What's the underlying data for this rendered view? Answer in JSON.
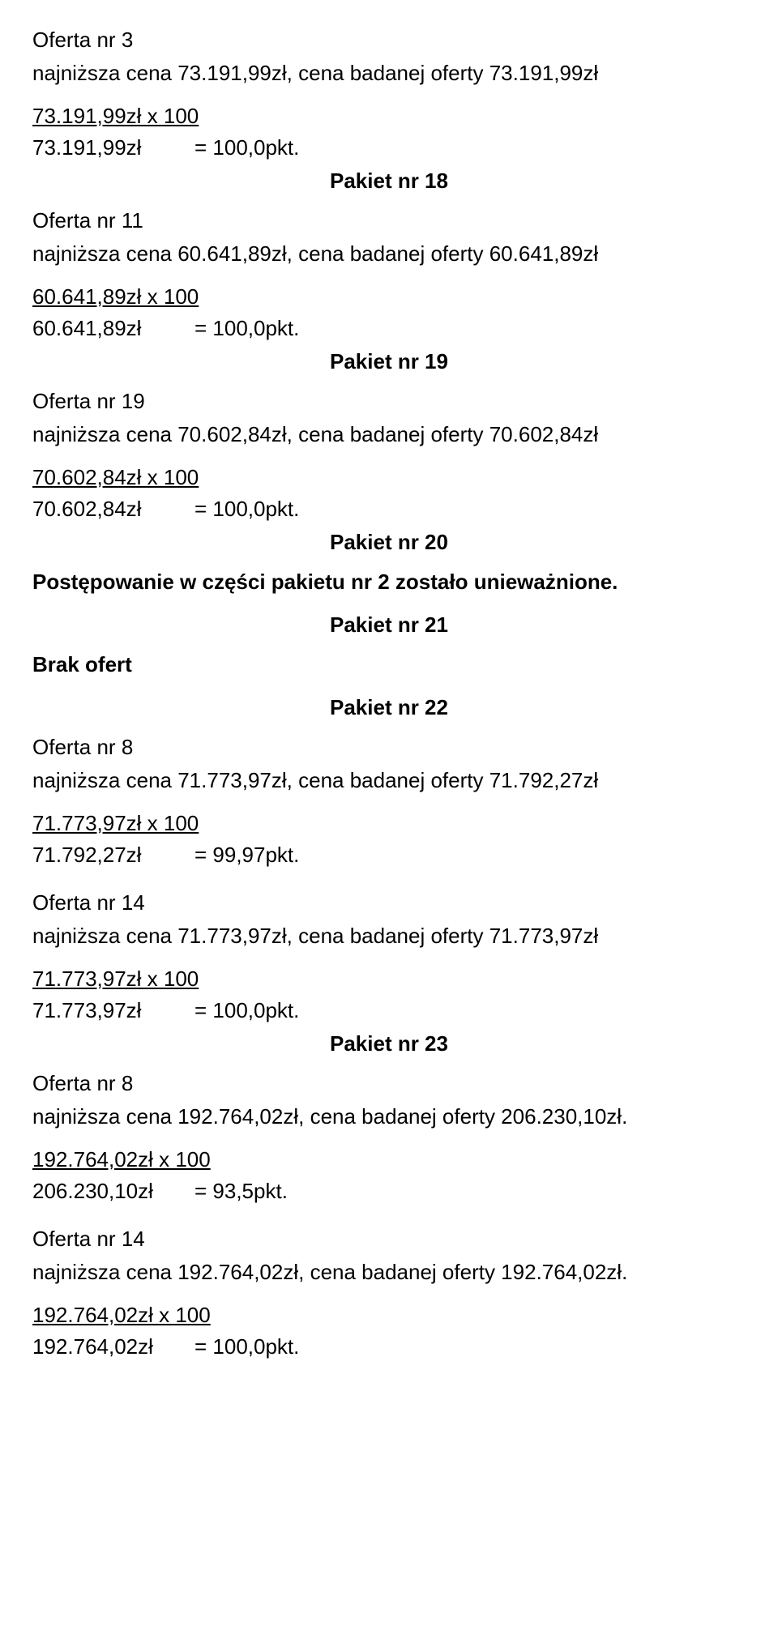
{
  "sec1": {
    "offer": "Oferta nr 3",
    "priceline": "najniższa cena 73.191,99zł, cena badanej oferty 73.191,99zł",
    "frac_top": "73.191,99zł  x  100",
    "frac_bot": "73.191,99zł",
    "points": "=  100,0pkt."
  },
  "pakiet18": "Pakiet nr 18",
  "sec2": {
    "offer": "Oferta nr 11",
    "priceline": "najniższa cena 60.641,89zł, cena badanej oferty 60.641,89zł",
    "frac_top": "60.641,89zł  x  100",
    "frac_bot": "60.641,89zł",
    "points": "=  100,0pkt."
  },
  "pakiet19": "Pakiet nr 19",
  "sec3": {
    "offer": "Oferta nr 19",
    "priceline": "najniższa cena 70.602,84zł, cena badanej oferty 70.602,84zł",
    "frac_top": "70.602,84zł  x  100",
    "frac_bot": "70.602,84zł",
    "points": "=  100,0pkt."
  },
  "pakiet20": "Pakiet nr 20",
  "annul": "Postępowanie w części pakietu nr 2 zostało unieważnione.",
  "pakiet21": "Pakiet nr 21",
  "brak": "Brak ofert",
  "pakiet22": "Pakiet nr 22",
  "sec4": {
    "offer": "Oferta nr 8",
    "priceline": "najniższa cena 71.773,97zł, cena badanej oferty 71.792,27zł",
    "frac_top": "71.773,97zł  x  100",
    "frac_bot": "71.792,27zł",
    "points": "=  99,97pkt."
  },
  "sec5": {
    "offer": "Oferta nr 14",
    "priceline": "najniższa cena 71.773,97zł, cena badanej oferty 71.773,97zł",
    "frac_top": "71.773,97zł  x  100",
    "frac_bot": "71.773,97zł",
    "points": "=  100,0pkt."
  },
  "pakiet23": "Pakiet nr 23",
  "sec6": {
    "offer": "Oferta nr 8",
    "priceline": "najniższa cena 192.764,02zł, cena badanej oferty 206.230,10zł.",
    "frac_top": "192.764,02zł  x  100",
    "frac_bot": "206.230,10zł",
    "points": "=  93,5pkt."
  },
  "sec7": {
    "offer": "Oferta nr 14",
    "priceline": "najniższa cena 192.764,02zł, cena badanej oferty 192.764,02zł.",
    "frac_top": "192.764,02zł  x  100",
    "frac_bot": "192.764,02zł",
    "points": "=  100,0pkt."
  }
}
